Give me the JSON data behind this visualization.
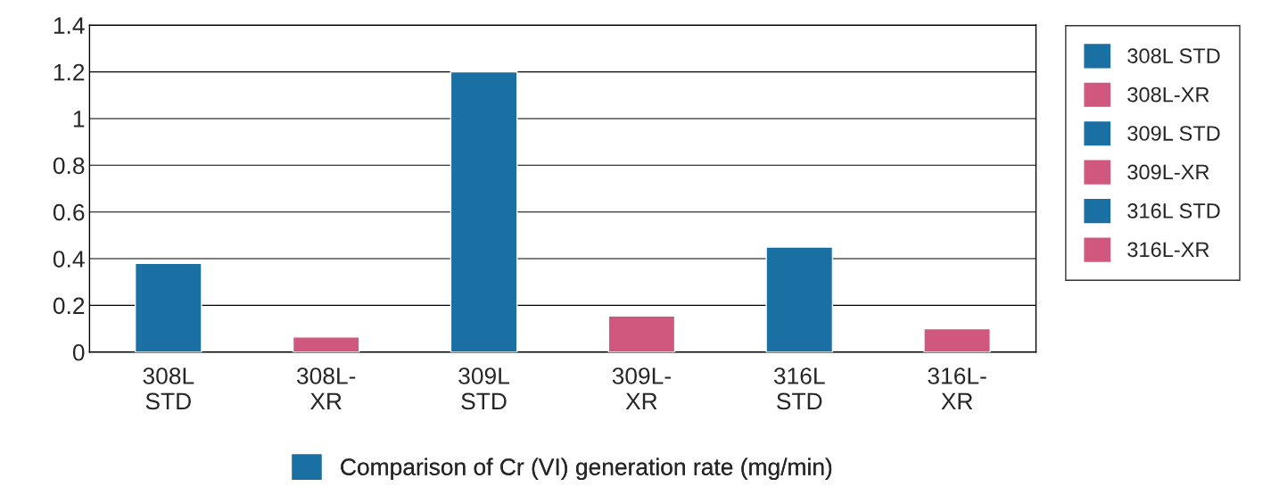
{
  "chart_data": {
    "type": "bar",
    "categories": [
      "308L STD",
      "308L-XR",
      "309L STD",
      "309L-XR",
      "316L STD",
      "316L-XR"
    ],
    "series": [
      {
        "name": "Comparison of Cr (VI) generation rate (mg/min)",
        "color": "#1a6fa3",
        "colors": [
          "#1a6fa3",
          "#d0587f",
          "#1a6fa3",
          "#d0587f",
          "#1a6fa3",
          "#d0587f"
        ],
        "values": [
          0.38,
          0.065,
          1.2,
          0.155,
          0.45,
          0.1
        ]
      }
    ],
    "ylim": [
      0,
      1.4
    ],
    "yticks": [
      0,
      0.2,
      0.4,
      0.6,
      0.8,
      1,
      1.2,
      1.4
    ],
    "grid": "y",
    "legend": "bottom"
  }
}
